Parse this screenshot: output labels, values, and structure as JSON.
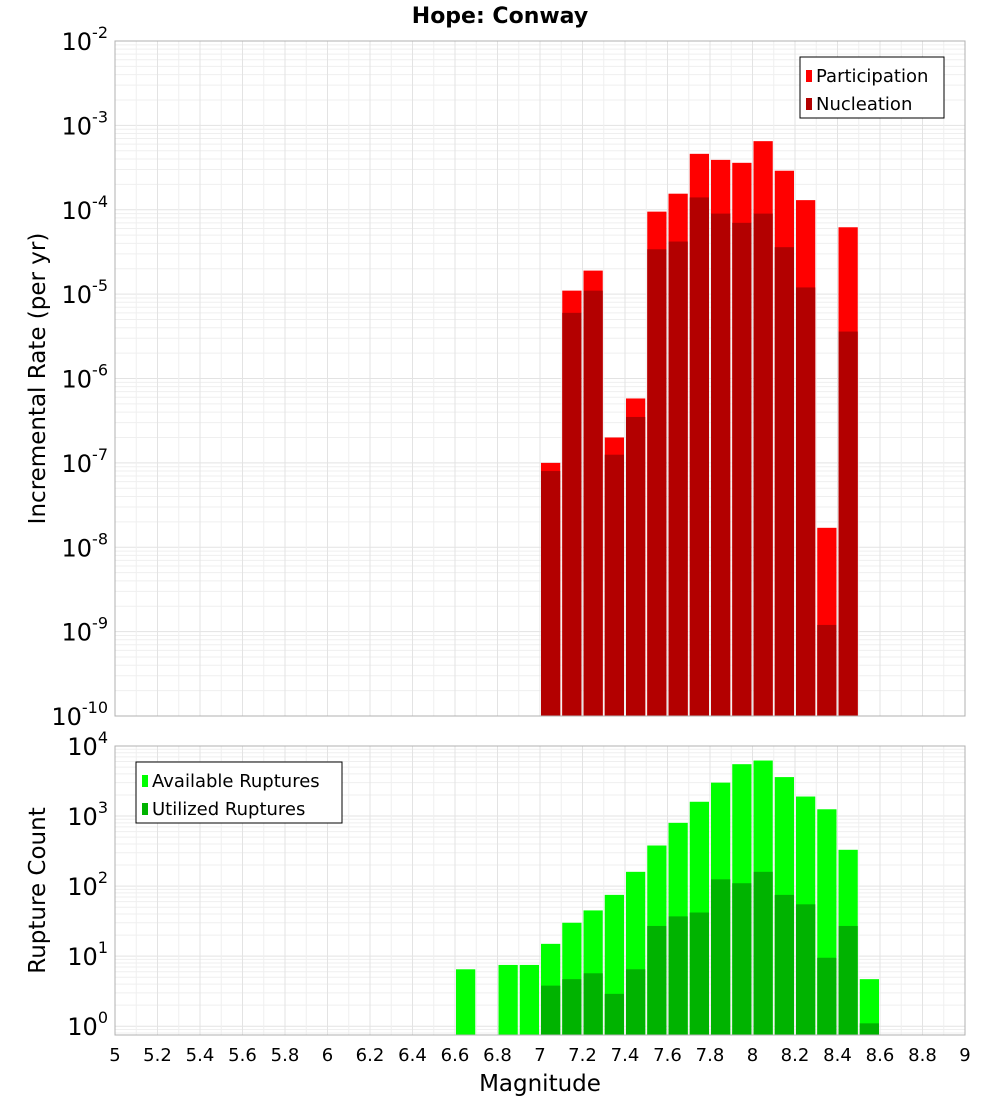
{
  "title": "Hope: Conway",
  "colors": {
    "participation": "#ff0000",
    "nucleation": "#b30000",
    "available": "#00ff00",
    "utilized": "#00b300"
  },
  "chart_data": [
    {
      "type": "bar",
      "panel": "top",
      "ylabel": "Incremental Rate (per yr)",
      "y_scale": "log",
      "ylim": [
        1e-10,
        0.01
      ],
      "xlim": [
        5,
        9
      ],
      "y_tick_labels": [
        {
          "base": "10",
          "exp": "-10",
          "value": 1e-10
        },
        {
          "base": "10",
          "exp": "-9",
          "value": 1e-09
        },
        {
          "base": "10",
          "exp": "-8",
          "value": 1e-08
        },
        {
          "base": "10",
          "exp": "-7",
          "value": 1e-07
        },
        {
          "base": "10",
          "exp": "-6",
          "value": 1e-06
        },
        {
          "base": "10",
          "exp": "-5",
          "value": 1e-05
        },
        {
          "base": "10",
          "exp": "-4",
          "value": 0.0001
        },
        {
          "base": "10",
          "exp": "-3",
          "value": 0.001
        },
        {
          "base": "10",
          "exp": "-2",
          "value": 0.01
        }
      ],
      "legend_placement": "top-right",
      "bin_width": 0.1,
      "x": [
        7.05,
        7.15,
        7.25,
        7.35,
        7.45,
        7.55,
        7.65,
        7.75,
        7.85,
        7.95,
        8.05,
        8.15,
        8.25,
        8.35,
        8.45
      ],
      "series": [
        {
          "name": "Participation",
          "values": [
            1e-07,
            1.1e-05,
            1.9e-05,
            2e-07,
            5.8e-07,
            9.5e-05,
            0.000155,
            0.00046,
            0.00039,
            0.00036,
            0.00065,
            0.00029,
            0.00013,
            1.7e-08,
            6.2e-05
          ]
        },
        {
          "name": "Nucleation",
          "values": [
            8e-08,
            6e-06,
            1.1e-05,
            1.25e-07,
            3.5e-07,
            3.4e-05,
            4.2e-05,
            0.00014,
            9e-05,
            7e-05,
            9e-05,
            3.6e-05,
            1.2e-05,
            1.2e-09,
            3.6e-06
          ]
        }
      ]
    },
    {
      "type": "bar",
      "panel": "bottom",
      "xlabel": "Magnitude",
      "ylabel": "Rupture Count",
      "y_scale": "log",
      "ylim": [
        0.75,
        10000
      ],
      "xlim": [
        5,
        9
      ],
      "x_ticks": [
        "5",
        "5.2",
        "5.4",
        "5.6",
        "5.8",
        "6",
        "6.2",
        "6.4",
        "6.6",
        "6.8",
        "7",
        "7.2",
        "7.4",
        "7.6",
        "7.8",
        "8",
        "8.2",
        "8.4",
        "8.6",
        "8.8",
        "9"
      ],
      "y_tick_labels": [
        {
          "base": "10",
          "exp": "0",
          "value": 1
        },
        {
          "base": "10",
          "exp": "1",
          "value": 10
        },
        {
          "base": "10",
          "exp": "2",
          "value": 100
        },
        {
          "base": "10",
          "exp": "3",
          "value": 1000
        },
        {
          "base": "10",
          "exp": "4",
          "value": 10000
        }
      ],
      "legend_placement": "top-left",
      "bin_width": 0.1,
      "x": [
        6.65,
        6.75,
        6.85,
        6.95,
        7.05,
        7.15,
        7.25,
        7.35,
        7.45,
        7.55,
        7.65,
        7.75,
        7.85,
        7.95,
        8.05,
        8.15,
        8.25,
        8.35,
        8.45,
        8.55
      ],
      "series": [
        {
          "name": "Available Ruptures",
          "values": [
            6.5,
            null,
            7.5,
            7.5,
            15,
            30,
            45,
            75,
            160,
            380,
            800,
            1600,
            3000,
            5500,
            6200,
            3600,
            1900,
            1250,
            330,
            4.7
          ]
        },
        {
          "name": "Utilized Ruptures",
          "values": [
            null,
            null,
            null,
            null,
            3.8,
            4.7,
            5.7,
            2.9,
            6.5,
            27,
            37,
            42,
            125,
            110,
            160,
            75,
            55,
            9.5,
            27,
            1.1
          ]
        }
      ]
    }
  ]
}
